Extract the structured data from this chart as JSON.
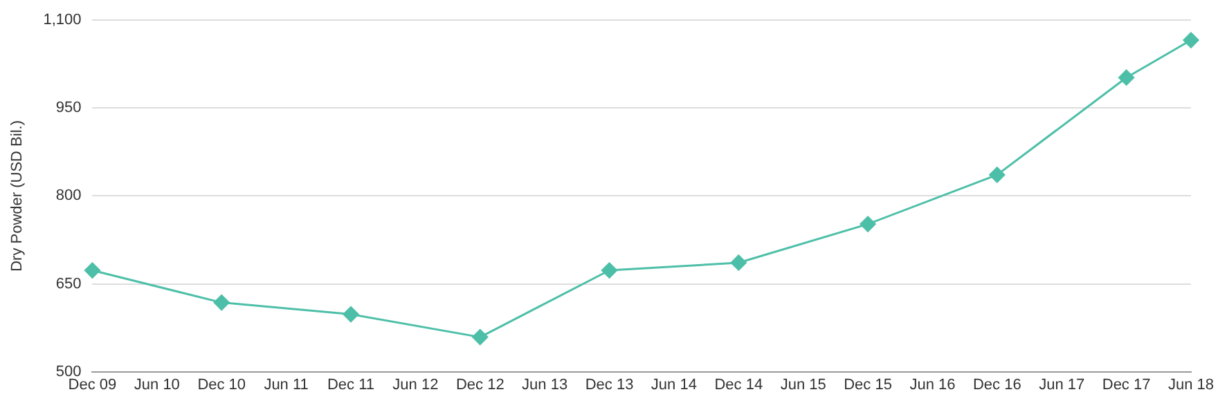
{
  "chart_data": {
    "type": "line",
    "ylabel": "Dry Powder (USD Bil.)",
    "categories": [
      "Dec 09",
      "Jun 10",
      "Dec 10",
      "Jun 11",
      "Dec 11",
      "Jun 12",
      "Dec 12",
      "Jun 13",
      "Dec 13",
      "Jun 14",
      "Dec 14",
      "Jun 15",
      "Dec 15",
      "Jun 16",
      "Dec 16",
      "Jun 17",
      "Dec 17",
      "Jun 18"
    ],
    "series": [
      {
        "color": "#4dbfa8",
        "values": [
          673,
          null,
          618,
          null,
          598,
          null,
          559,
          null,
          673,
          null,
          686,
          null,
          752,
          null,
          836,
          null,
          1002,
          1066
        ]
      }
    ],
    "ylim": [
      500,
      1100
    ],
    "yticks": [
      500,
      650,
      800,
      950,
      {
        "value": 1100,
        "label": "1,100"
      }
    ],
    "grid": "y",
    "marker": "diamond",
    "line_style": "solid",
    "legend": false
  }
}
